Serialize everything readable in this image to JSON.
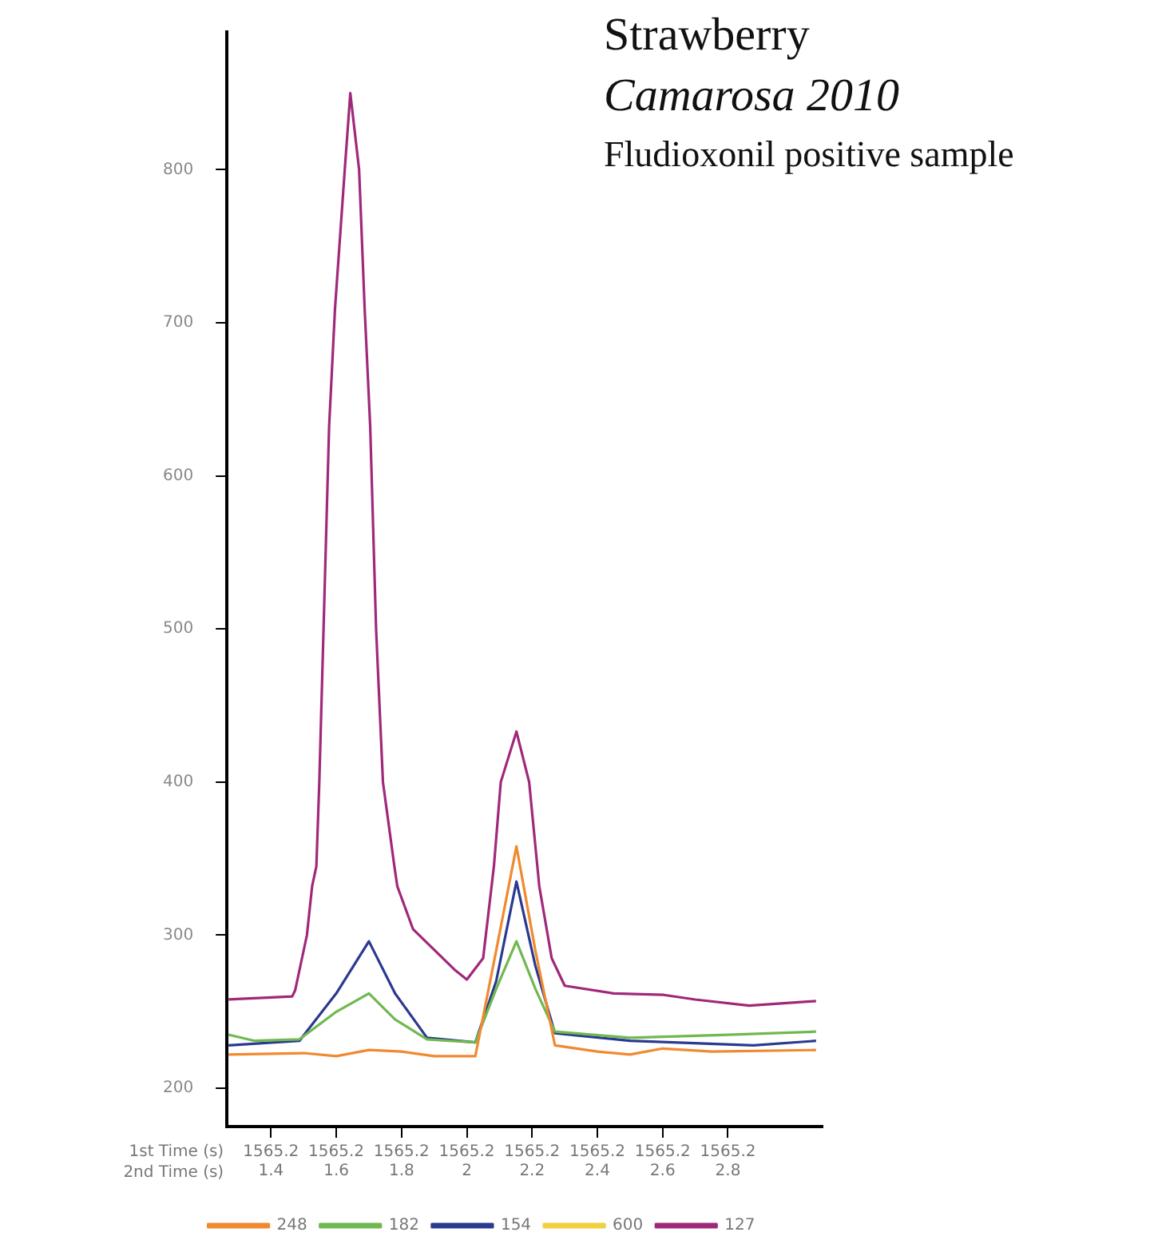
{
  "chart_data": {
    "type": "line",
    "title": "Strawberry",
    "subtitle": "Camarosa 2010",
    "annotations": [
      "Fludioxonil positive sample",
      "1st Time (s)",
      "1565.2",
      "1565.2",
      "1565.2",
      "1565.2",
      "1565.2",
      "1565.2",
      "1565.2",
      "1565.2"
    ],
    "xlabel": "2nd Time (s)",
    "xlim": [
      1.265,
      3.09
    ],
    "ylim": [
      175,
      890
    ],
    "xticks": [
      1.4,
      1.6,
      1.8,
      2,
      2.2,
      2.4,
      2.6,
      2.8
    ],
    "yticks": [
      200,
      300,
      400,
      500,
      600,
      700,
      800
    ],
    "grid": false,
    "legend": "bottom",
    "marker": "none",
    "line_style": "solid",
    "series": [
      {
        "name": "248",
        "color": "#f08a30",
        "x": [
          1.27,
          1.5,
          1.6,
          1.7,
          1.8,
          1.9,
          2.026,
          2.09,
          2.152,
          2.21,
          2.27,
          2.4,
          2.5,
          2.6,
          2.75,
          3.07
        ],
        "values": [
          222,
          223,
          221,
          225,
          224,
          221,
          221,
          290,
          358,
          290,
          228,
          224,
          222,
          226,
          224,
          225
        ]
      },
      {
        "name": "182",
        "color": "#70b850",
        "x": [
          1.27,
          1.35,
          1.487,
          1.6,
          1.7,
          1.78,
          1.878,
          2.026,
          2.09,
          2.152,
          2.21,
          2.27,
          2.5,
          2.8,
          3.07
        ],
        "values": [
          235,
          231,
          232,
          250,
          262,
          245,
          232,
          230,
          265,
          296,
          265,
          237,
          233,
          235,
          237
        ]
      },
      {
        "name": "154",
        "color": "#2a3a90",
        "x": [
          1.27,
          1.487,
          1.6,
          1.7,
          1.78,
          1.878,
          2.026,
          2.09,
          2.152,
          2.21,
          2.27,
          2.5,
          2.878,
          3.07
        ],
        "values": [
          228,
          231,
          262,
          296,
          262,
          233,
          230,
          270,
          335,
          280,
          236,
          231,
          228,
          231
        ]
      },
      {
        "name": "600",
        "color": "#f0d040"
      },
      {
        "name": "127",
        "color": "#a0287a",
        "x": [
          1.27,
          1.465,
          1.474,
          1.51,
          1.526,
          1.539,
          1.548,
          1.561,
          1.578,
          1.596,
          1.626,
          1.643,
          1.67,
          1.687,
          1.704,
          1.722,
          1.743,
          1.778,
          1.787,
          1.835,
          1.965,
          2.0,
          2.05,
          2.083,
          2.104,
          2.152,
          2.191,
          2.222,
          2.26,
          2.3,
          2.45,
          2.604,
          2.7,
          2.865,
          3.07
        ],
        "values": [
          258,
          260,
          264,
          300,
          332,
          345,
          400,
          500,
          632,
          709,
          800,
          850,
          800,
          709,
          632,
          500,
          400,
          345,
          332,
          304,
          277,
          271,
          285,
          345,
          400,
          433,
          400,
          332,
          285,
          267,
          262,
          261,
          258,
          254,
          257
        ]
      }
    ]
  }
}
